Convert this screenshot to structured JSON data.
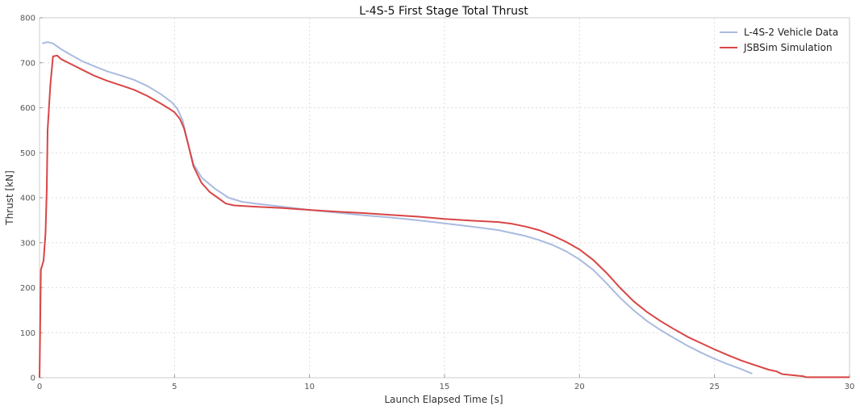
{
  "chart_data": {
    "type": "line",
    "title": "L-4S-5 First Stage Total Thrust",
    "xlabel": "Launch Elapsed Time [s]",
    "ylabel": "Thrust [kN]",
    "xlim": [
      0,
      30
    ],
    "ylim": [
      0,
      800
    ],
    "xticks": [
      0,
      5,
      10,
      15,
      20,
      25,
      30
    ],
    "yticks": [
      0,
      100,
      200,
      300,
      400,
      500,
      600,
      700,
      800
    ],
    "grid": true,
    "legend_position": "top-right",
    "series": [
      {
        "name": "L-4S-2 Vehicle Data",
        "color": "#aabbe0",
        "points": [
          [
            0.1,
            743
          ],
          [
            0.3,
            746
          ],
          [
            0.5,
            743
          ],
          [
            0.8,
            730
          ],
          [
            1.2,
            716
          ],
          [
            1.6,
            703
          ],
          [
            2.0,
            693
          ],
          [
            2.5,
            681
          ],
          [
            3.0,
            672
          ],
          [
            3.5,
            662
          ],
          [
            4.0,
            648
          ],
          [
            4.5,
            630
          ],
          [
            4.9,
            612
          ],
          [
            5.1,
            598
          ],
          [
            5.3,
            572
          ],
          [
            5.5,
            520
          ],
          [
            5.7,
            475
          ],
          [
            6.0,
            445
          ],
          [
            6.5,
            420
          ],
          [
            7.0,
            400
          ],
          [
            7.5,
            391
          ],
          [
            8.0,
            387
          ],
          [
            9.0,
            380
          ],
          [
            10.0,
            373
          ],
          [
            11.0,
            367
          ],
          [
            12.0,
            361
          ],
          [
            13.0,
            356
          ],
          [
            14.0,
            350
          ],
          [
            15.0,
            343
          ],
          [
            16.0,
            336
          ],
          [
            17.0,
            328
          ],
          [
            18.0,
            315
          ],
          [
            18.5,
            306
          ],
          [
            19.0,
            295
          ],
          [
            19.5,
            281
          ],
          [
            20.0,
            263
          ],
          [
            20.5,
            240
          ],
          [
            21.0,
            210
          ],
          [
            21.5,
            178
          ],
          [
            22.0,
            150
          ],
          [
            22.5,
            126
          ],
          [
            23.0,
            106
          ],
          [
            23.5,
            88
          ],
          [
            24.0,
            71
          ],
          [
            24.5,
            56
          ],
          [
            25.0,
            42
          ],
          [
            25.5,
            30
          ],
          [
            26.0,
            19
          ],
          [
            26.4,
            9
          ]
        ]
      },
      {
        "name": "JSBSim Simulation",
        "color": "#d94545",
        "points": [
          [
            0.0,
            0
          ],
          [
            0.05,
            240
          ],
          [
            0.15,
            260
          ],
          [
            0.22,
            320
          ],
          [
            0.27,
            420
          ],
          [
            0.3,
            550
          ],
          [
            0.4,
            650
          ],
          [
            0.5,
            714
          ],
          [
            0.65,
            716
          ],
          [
            0.8,
            708
          ],
          [
            1.2,
            696
          ],
          [
            1.6,
            684
          ],
          [
            2.0,
            672
          ],
          [
            2.5,
            660
          ],
          [
            3.0,
            650
          ],
          [
            3.5,
            640
          ],
          [
            4.0,
            626
          ],
          [
            4.5,
            609
          ],
          [
            4.8,
            598
          ],
          [
            5.0,
            590
          ],
          [
            5.2,
            575
          ],
          [
            5.35,
            555
          ],
          [
            5.5,
            520
          ],
          [
            5.7,
            470
          ],
          [
            6.0,
            433
          ],
          [
            6.3,
            413
          ],
          [
            6.6,
            400
          ],
          [
            6.9,
            387
          ],
          [
            7.2,
            383
          ],
          [
            8.0,
            380
          ],
          [
            9.0,
            377
          ],
          [
            10.0,
            373
          ],
          [
            11.0,
            369
          ],
          [
            12.0,
            366
          ],
          [
            13.0,
            362
          ],
          [
            14.0,
            358
          ],
          [
            15.0,
            353
          ],
          [
            16.0,
            349
          ],
          [
            17.0,
            346
          ],
          [
            17.5,
            342
          ],
          [
            18.0,
            336
          ],
          [
            18.5,
            328
          ],
          [
            19.0,
            316
          ],
          [
            19.5,
            302
          ],
          [
            20.0,
            285
          ],
          [
            20.5,
            262
          ],
          [
            21.0,
            233
          ],
          [
            21.5,
            200
          ],
          [
            22.0,
            170
          ],
          [
            22.5,
            146
          ],
          [
            23.0,
            126
          ],
          [
            23.5,
            108
          ],
          [
            24.0,
            91
          ],
          [
            24.5,
            77
          ],
          [
            25.0,
            63
          ],
          [
            25.5,
            50
          ],
          [
            26.0,
            38
          ],
          [
            26.5,
            28
          ],
          [
            27.0,
            18
          ],
          [
            27.3,
            14
          ],
          [
            27.5,
            8
          ],
          [
            28.0,
            5
          ],
          [
            28.3,
            3
          ],
          [
            28.4,
            1
          ],
          [
            29.0,
            1
          ],
          [
            30.0,
            1
          ]
        ]
      }
    ]
  }
}
